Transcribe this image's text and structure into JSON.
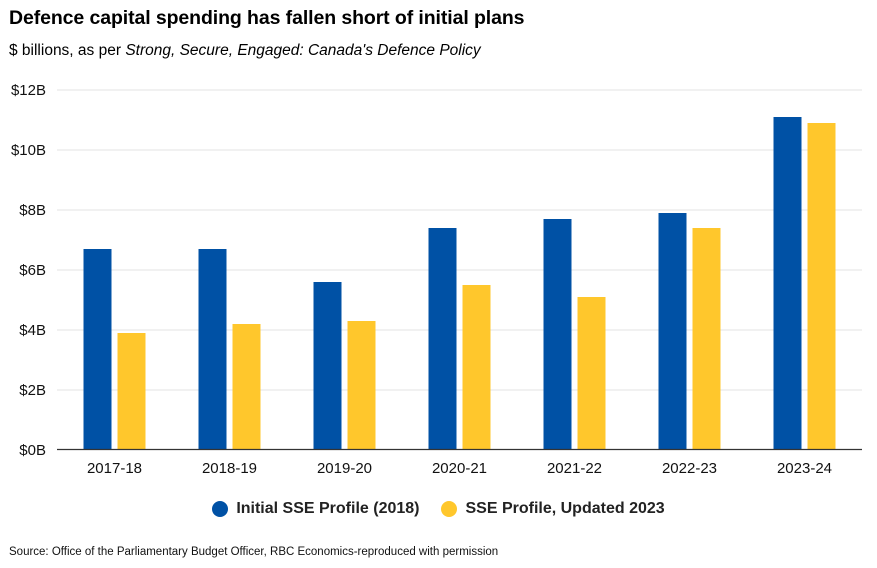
{
  "chart_data": {
    "type": "bar",
    "title": "Defence capital spending has fallen short of initial plans",
    "subtitle_prefix": "$ billions, as per ",
    "subtitle_italic": "Strong, Secure, Engaged: Canada's Defence Policy",
    "xlabel": "",
    "ylabel": "",
    "categories": [
      "2017-18",
      "2018-19",
      "2019-20",
      "2020-21",
      "2021-22",
      "2022-23",
      "2023-24"
    ],
    "series": [
      {
        "name": "Initial SSE Profile (2018)",
        "color": "#0051A5",
        "values": [
          6.7,
          6.7,
          5.6,
          7.4,
          7.7,
          7.9,
          11.1
        ]
      },
      {
        "name": "SSE Profile, Updated 2023",
        "color": "#FFC72C",
        "values": [
          3.9,
          4.2,
          4.3,
          5.5,
          5.1,
          7.4,
          10.9
        ]
      }
    ],
    "ylim": [
      0,
      12
    ],
    "yticks": [
      0,
      2,
      4,
      6,
      8,
      10,
      12
    ],
    "ytick_labels": [
      "$0B",
      "$2B",
      "$4B",
      "$6B",
      "$8B",
      "$10B",
      "$12B"
    ],
    "grid": true,
    "legend_position": "bottom-center",
    "source": "Source: Office of the Parliamentary Budget Officer, RBC Economics-reproduced with permission"
  }
}
